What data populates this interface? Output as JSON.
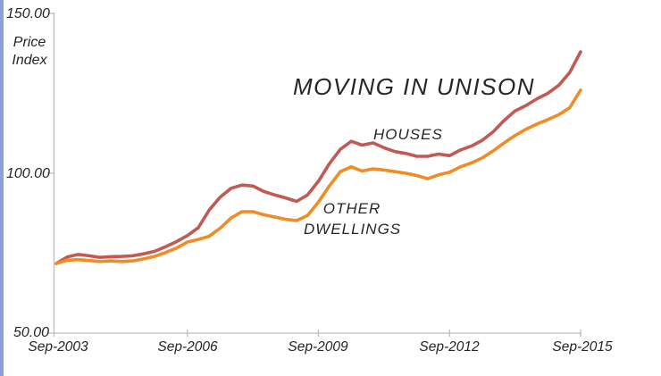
{
  "page": {
    "background_color": "#ffffff",
    "edge_strip_color": "#8da1d6",
    "axis_color": "#bdbdbd",
    "text_color": "#262626"
  },
  "chart_data": {
    "type": "line",
    "title": "MOVING IN UNISON",
    "ylabel": "Price Index",
    "ylabel_lines": [
      "Price",
      "Index"
    ],
    "xlabel": "",
    "ylim": [
      50,
      150
    ],
    "ytick_labels": [
      "150.00",
      "100.00",
      "50.00"
    ],
    "xtick_labels": [
      "Sep-2003",
      "Sep-2006",
      "Sep-2009",
      "Sep-2012",
      "Sep-2015"
    ],
    "x_frequency": "quarterly",
    "x_range": [
      "Sep-2003",
      "Sep-2015"
    ],
    "grid": false,
    "legend_position": "inline-annotations",
    "annotations": {
      "houses_label": "HOUSES",
      "other_dwellings_lines": [
        "OTHER",
        "DWELLINGS"
      ]
    },
    "series": [
      {
        "name": "HOUSES",
        "color": "#c05a52",
        "values": [
          71.8,
          73.8,
          74.6,
          74.2,
          73.7,
          73.9,
          74.0,
          74.2,
          74.8,
          75.6,
          77.0,
          78.6,
          80.5,
          83.0,
          88.5,
          92.5,
          95.3,
          96.3,
          96.0,
          94.3,
          93.2,
          92.3,
          91.2,
          93.2,
          97.5,
          103.0,
          107.5,
          110.0,
          108.8,
          109.5,
          108.0,
          106.8,
          106.2,
          105.3,
          105.3,
          106.0,
          105.5,
          107.3,
          108.5,
          110.3,
          113.0,
          116.5,
          119.5,
          121.2,
          123.3,
          125.0,
          127.5,
          131.5,
          138.0
        ]
      },
      {
        "name": "OTHER DWELLINGS",
        "color": "#f08c25",
        "values": [
          71.8,
          72.8,
          73.0,
          72.7,
          72.4,
          72.6,
          72.4,
          72.6,
          73.2,
          74.0,
          75.2,
          76.6,
          78.5,
          79.3,
          80.3,
          82.8,
          86.0,
          88.0,
          88.0,
          87.0,
          86.3,
          85.6,
          85.2,
          86.8,
          91.0,
          96.0,
          100.5,
          102.0,
          100.7,
          101.4,
          101.0,
          100.5,
          100.0,
          99.3,
          98.3,
          99.5,
          100.3,
          102.0,
          103.2,
          104.8,
          107.0,
          109.5,
          111.8,
          113.8,
          115.4,
          116.8,
          118.3,
          120.5,
          126.0
        ]
      }
    ]
  }
}
